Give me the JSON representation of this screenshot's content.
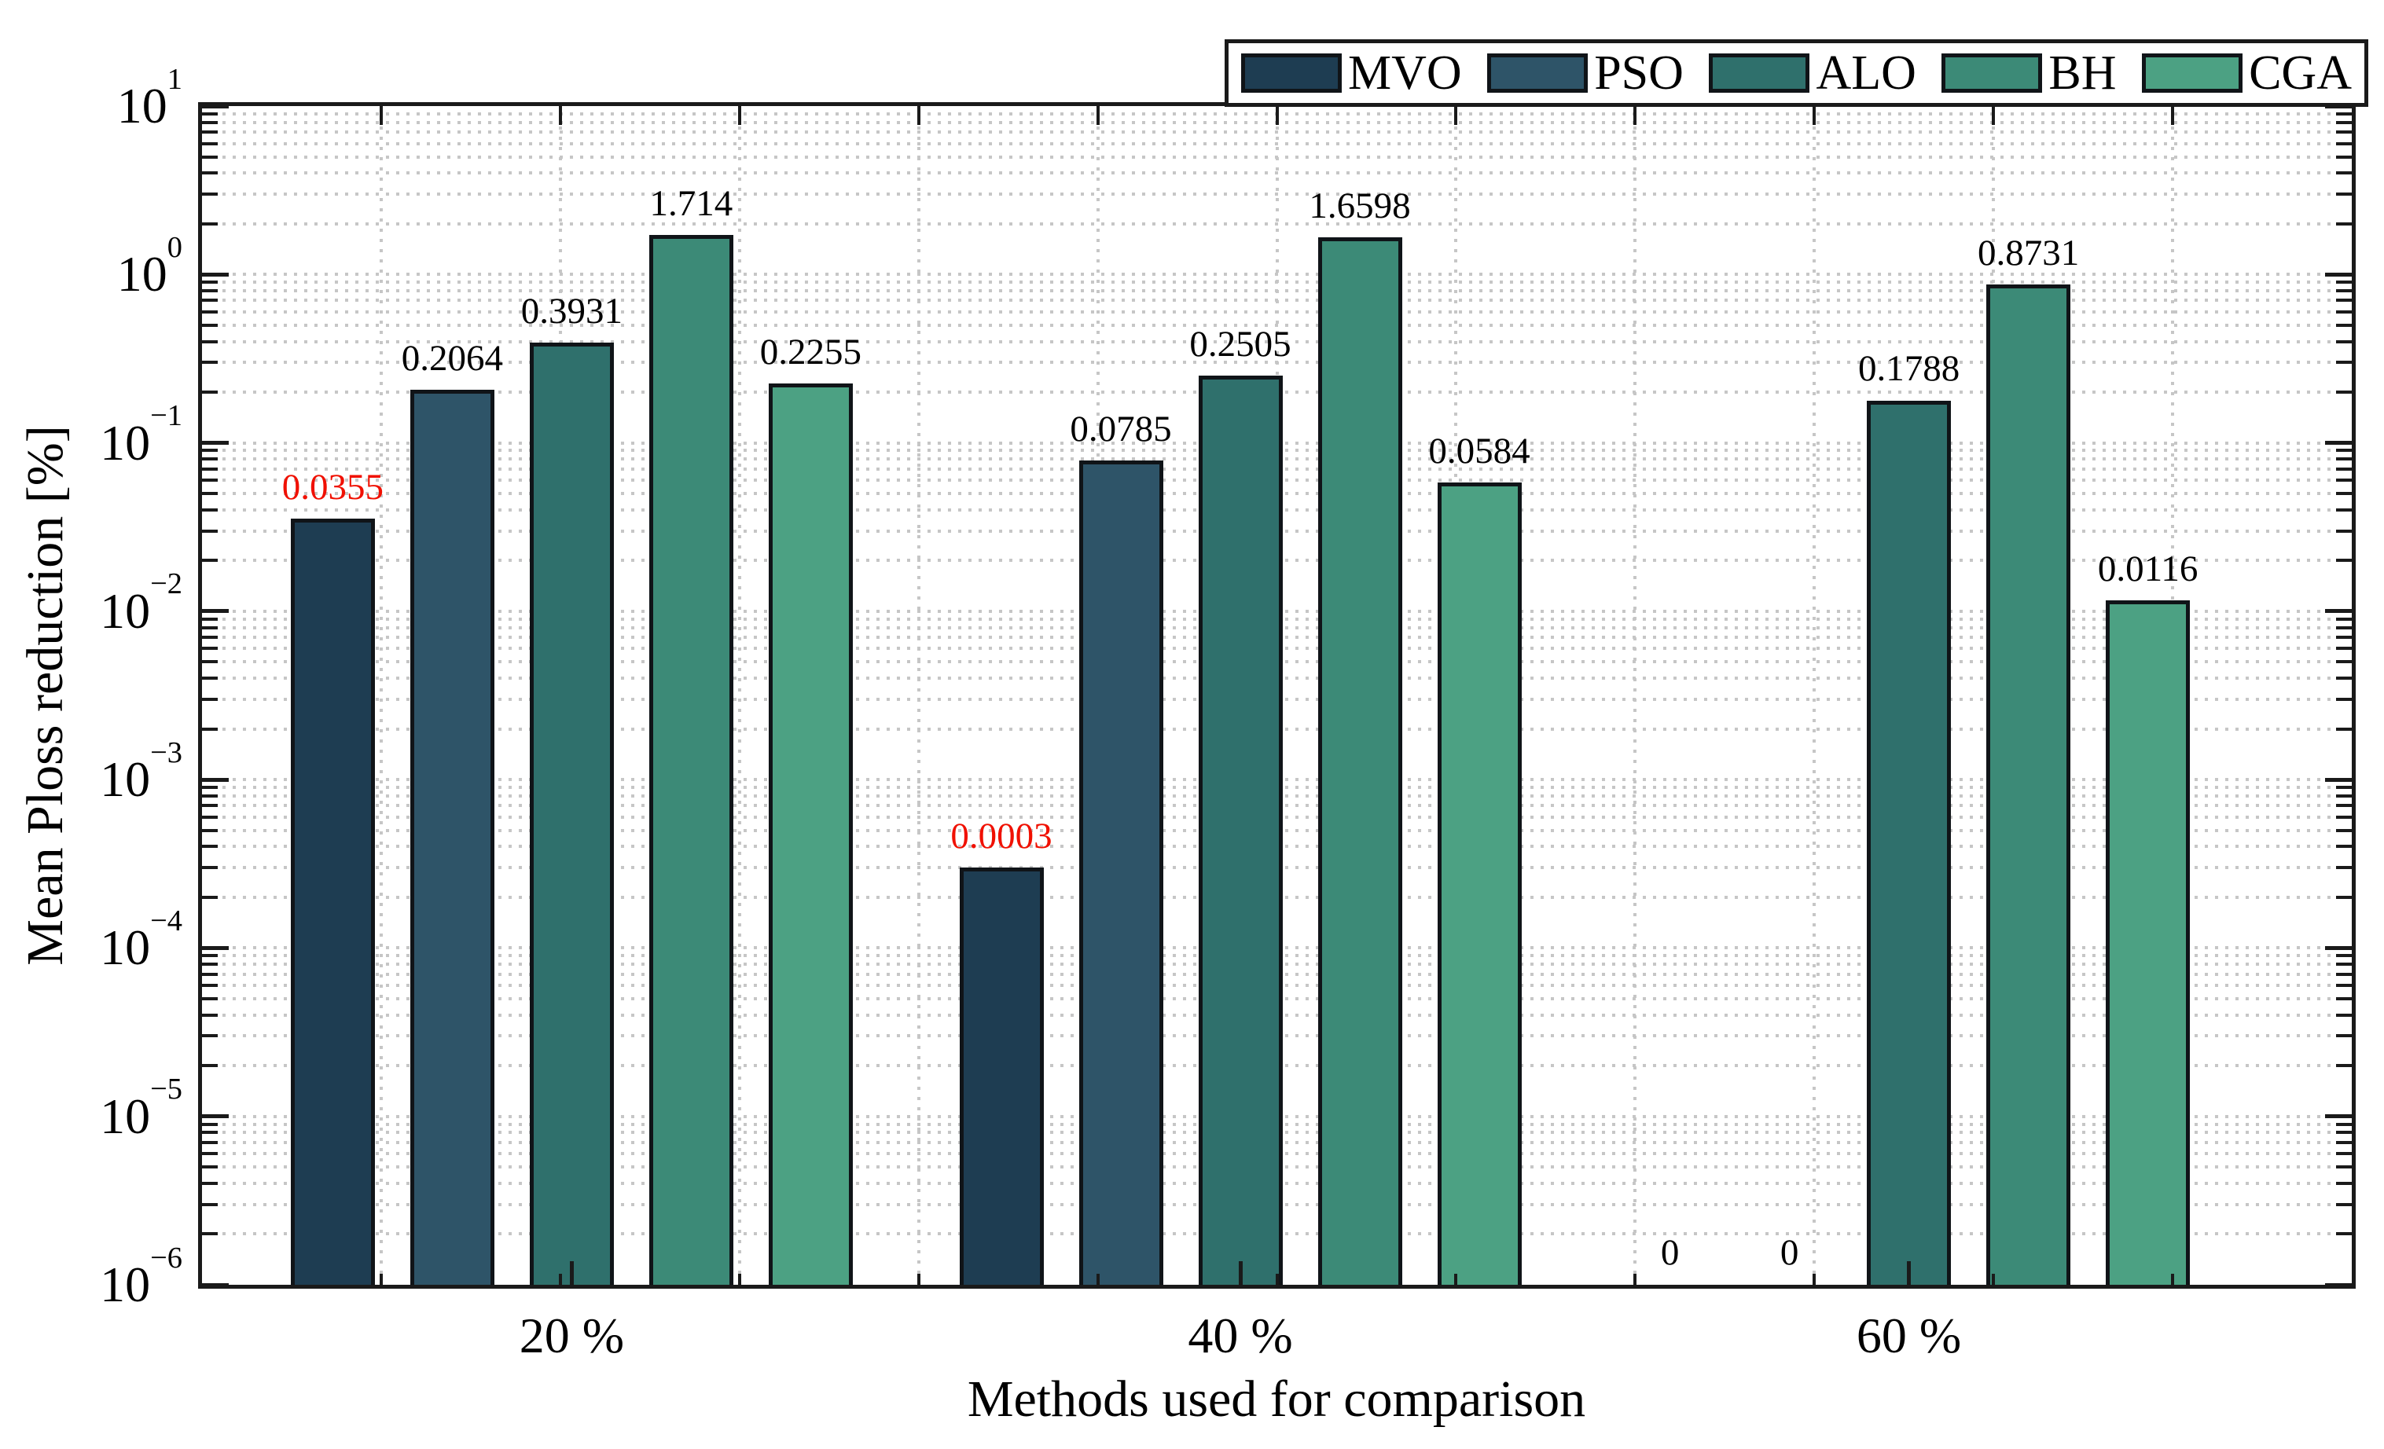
{
  "chart_data": {
    "type": "bar",
    "title": "",
    "xlabel": "Methods used for comparison",
    "ylabel": "Mean Ploss reduction [%]",
    "yscale": "log",
    "ylim": [
      1e-06,
      10
    ],
    "ytick_exponents": [
      1,
      0,
      -1,
      -2,
      -3,
      -4,
      -5,
      -6
    ],
    "categories": [
      "20 %",
      "40 %",
      "60 %"
    ],
    "series": [
      {
        "name": "MVO",
        "color": "#1e3d52",
        "values": [
          0.0355,
          0.0003,
          0
        ],
        "labels": [
          "0.0355",
          "0.0003",
          "0"
        ],
        "label_colors": [
          "#f01000",
          "#f01000",
          "#000000"
        ]
      },
      {
        "name": "PSO",
        "color": "#2e5468",
        "values": [
          0.2064,
          0.0785,
          0
        ],
        "labels": [
          "0.2064",
          "0.0785",
          "0"
        ],
        "label_colors": [
          "#000000",
          "#000000",
          "#000000"
        ]
      },
      {
        "name": "ALO",
        "color": "#2f706c",
        "values": [
          0.3931,
          0.2505,
          0.1788
        ],
        "labels": [
          "0.3931",
          "0.2505",
          "0.1788"
        ],
        "label_colors": [
          "#000000",
          "#000000",
          "#000000"
        ]
      },
      {
        "name": "BH",
        "color": "#3c8a77",
        "values": [
          1.714,
          1.6598,
          0.8731
        ],
        "labels": [
          "1.714",
          "1.6598",
          "0.8731"
        ],
        "label_colors": [
          "#000000",
          "#000000",
          "#000000"
        ]
      },
      {
        "name": "CGA",
        "color": "#4ca183",
        "values": [
          0.2255,
          0.0584,
          0.0116
        ],
        "labels": [
          "0.2255",
          "0.0584",
          "0.0116"
        ],
        "label_colors": [
          "#000000",
          "#000000",
          "#000000"
        ]
      }
    ],
    "legend": {
      "position": "top-right",
      "entries": [
        "MVO",
        "PSO",
        "ALO",
        "BH",
        "CGA"
      ]
    },
    "grid": {
      "horizontal": true,
      "vertical": true,
      "style": "dotted"
    },
    "colors": {
      "frame": "#1a1a1a",
      "grid": "#c6c6c6",
      "background": "#ffffff",
      "highlight_label": "#f01000"
    }
  }
}
